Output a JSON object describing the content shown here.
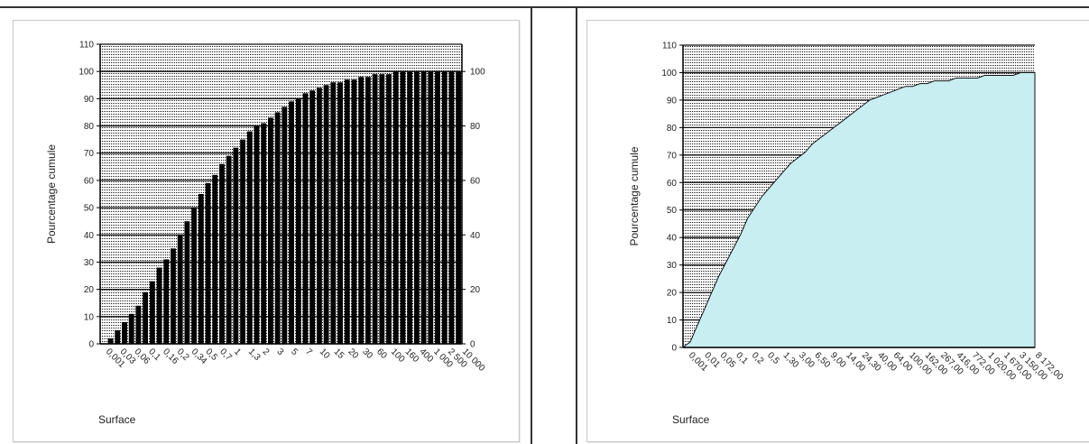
{
  "chart_data": [
    {
      "type": "bar",
      "ylabel": "Pourcentage cumule",
      "xlabel": "Surface",
      "ylim": [
        0,
        110
      ],
      "y_ticks": [
        0,
        10,
        20,
        30,
        40,
        50,
        60,
        70,
        80,
        90,
        100,
        110
      ],
      "secondary_y_ticks": [
        0,
        20,
        40,
        60,
        80,
        100
      ],
      "tick_labels": [
        "0,001",
        "0,03",
        "0,06",
        "0,1",
        "0,16",
        "0,2",
        "0,34",
        "0,5",
        "0,7",
        "1",
        "1,3",
        "2",
        "3",
        "5",
        "7",
        "10",
        "15",
        "20",
        "30",
        "60",
        "100",
        "160",
        "400",
        "1 000",
        "2 500",
        "10 000"
      ],
      "values": [
        0,
        2,
        5,
        8,
        11,
        14,
        19,
        23,
        28,
        31,
        35,
        40,
        45,
        50,
        55,
        59,
        62,
        66,
        69,
        72,
        75,
        78,
        80,
        81,
        83,
        85,
        87,
        89,
        90,
        92,
        93,
        94,
        95,
        96,
        96,
        97,
        97,
        98,
        98,
        99,
        99,
        99,
        100,
        100,
        100,
        100,
        100,
        100,
        100,
        100,
        100,
        100
      ]
    },
    {
      "type": "area",
      "ylabel": "Pourcentage cumule",
      "xlabel": "Surface",
      "ylim": [
        0,
        110
      ],
      "y_ticks": [
        0,
        10,
        20,
        30,
        40,
        50,
        60,
        70,
        80,
        90,
        100,
        110
      ],
      "tick_labels": [
        "0,001",
        "0,01",
        "0,05",
        "0,1",
        "0,2",
        "0,5",
        "1,30",
        "3,00",
        "6,50",
        "9,00",
        "14,00",
        "24,30",
        "40,00",
        "64,00",
        "100,00",
        "162,00",
        "267,00",
        "416,00",
        "772,00",
        "1 020,00",
        "1 670,00",
        "3 150,00",
        "8 172,00"
      ],
      "values": [
        0,
        2,
        8,
        14,
        20,
        26,
        31,
        36,
        41,
        47,
        51,
        55,
        58,
        61,
        64,
        67,
        69,
        71,
        74,
        76,
        78,
        80,
        82,
        84,
        86,
        88,
        90,
        91,
        92,
        93,
        94,
        95,
        95,
        96,
        96,
        97,
        97,
        97,
        98,
        98,
        98,
        98,
        99,
        99,
        99,
        99,
        99,
        100,
        100,
        100
      ],
      "fill_color": "#c8eef2"
    }
  ]
}
